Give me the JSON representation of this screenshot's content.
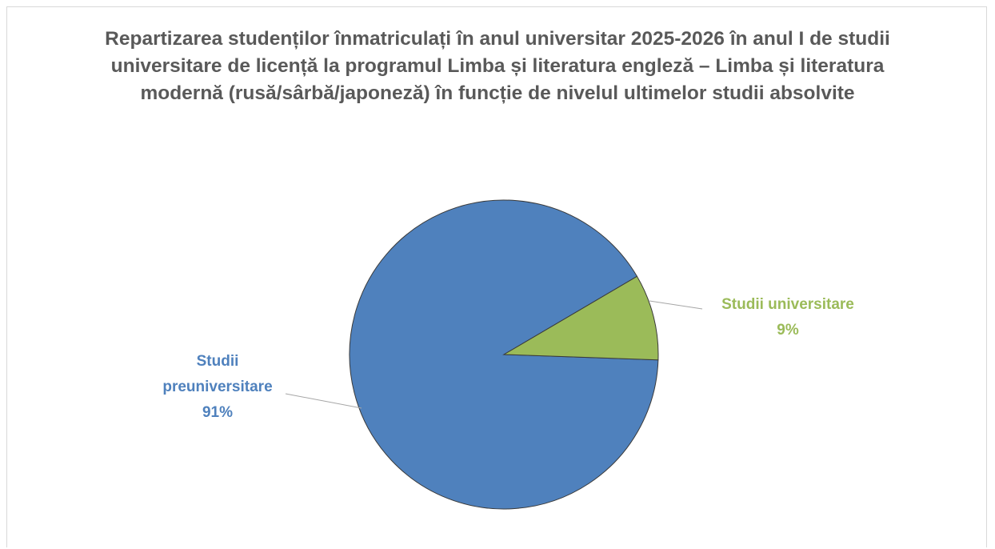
{
  "chart_data": {
    "type": "pie",
    "title": "Repartizarea studenților înmatriculați în anul universitar 2025-2026 în anul I de studii universitare de licență la programul  Limba și literatura engleză – Limba și literatura modernă (rusă/sârbă/japoneză) în funcție de nivelul ultimelor studii absolvite",
    "categories": [
      "Studii preuniversitare",
      "Studii universitare"
    ],
    "values": [
      91,
      9
    ],
    "value_labels": [
      "91%",
      "9%"
    ],
    "colors": [
      "#4f81bd",
      "#9bbb59"
    ]
  }
}
